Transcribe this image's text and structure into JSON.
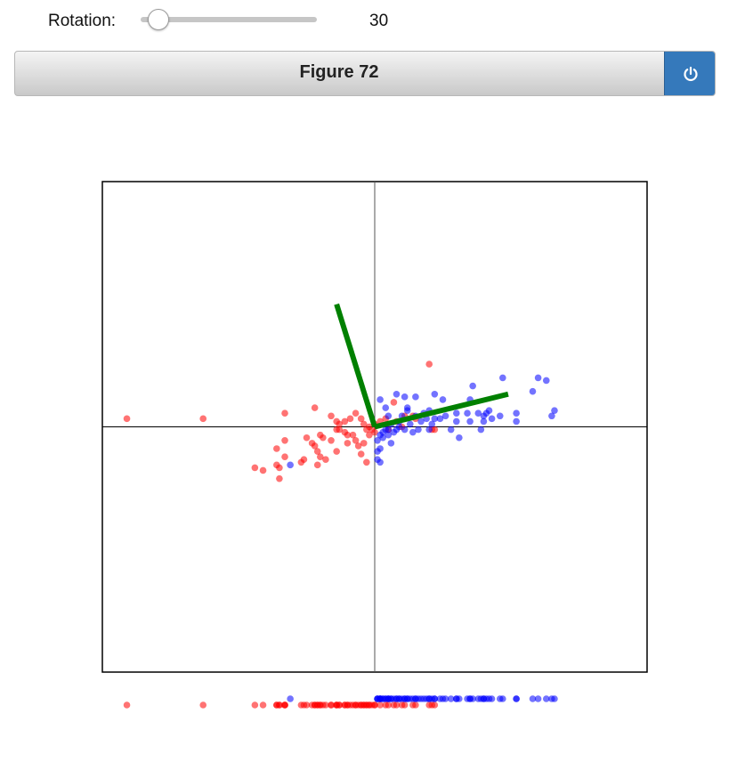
{
  "controls": {
    "rotation_label": "Rotation:",
    "rotation_value": "30",
    "rotation_fraction": 0.1
  },
  "figure": {
    "title": "Figure 72",
    "power_button_icon": "power-icon"
  },
  "colors": {
    "red_class": "#ff0000",
    "blue_class": "#0000ff",
    "vectors": "#008000",
    "power_button": "#3579bb",
    "axes": "#000000"
  },
  "chart_data": {
    "type": "scatter",
    "title": "",
    "xlabel": "",
    "ylabel": "",
    "xlim": [
      -100,
      100
    ],
    "ylim": [
      -90,
      90
    ],
    "grid": false,
    "zero_lines": true,
    "series": [
      {
        "color": "#ff0000",
        "points": [
          [
            -91,
            3
          ],
          [
            -63,
            3
          ],
          [
            -33,
            5
          ],
          [
            -22,
            7
          ],
          [
            -16,
            4
          ],
          [
            -14,
            2
          ],
          [
            -13,
            1
          ],
          [
            -11,
            2
          ],
          [
            -9,
            3
          ],
          [
            -7,
            5
          ],
          [
            -5,
            3
          ],
          [
            -4,
            1
          ],
          [
            -3,
            -1
          ],
          [
            -2,
            0
          ],
          [
            -1,
            -1
          ],
          [
            0,
            1
          ],
          [
            2,
            2
          ],
          [
            4,
            3
          ],
          [
            5,
            -1
          ],
          [
            7,
            9
          ],
          [
            8,
            2
          ],
          [
            10,
            0
          ],
          [
            11,
            4
          ],
          [
            14,
            4
          ],
          [
            15,
            3
          ],
          [
            20,
            23
          ],
          [
            21,
            -1
          ],
          [
            22,
            -1
          ],
          [
            -20,
            -3
          ],
          [
            -19,
            -4
          ],
          [
            -16,
            -5
          ],
          [
            -14,
            -1
          ],
          [
            -13,
            -1
          ],
          [
            -11,
            -2
          ],
          [
            -10,
            -3
          ],
          [
            -8,
            -3
          ],
          [
            -7,
            -5
          ],
          [
            -6,
            -7
          ],
          [
            -4,
            -6
          ],
          [
            -2,
            -3
          ],
          [
            0,
            -2
          ],
          [
            -23,
            -6
          ],
          [
            -25,
            -4
          ],
          [
            -22,
            -7
          ],
          [
            -21,
            -9
          ],
          [
            -20,
            -11
          ],
          [
            -26,
            -12
          ],
          [
            -27,
            -13
          ],
          [
            -33,
            -5
          ],
          [
            -36,
            -8
          ],
          [
            -33,
            -11
          ],
          [
            -36,
            -14
          ],
          [
            -35,
            -19
          ],
          [
            -44,
            -15
          ],
          [
            -41,
            -16
          ],
          [
            -35,
            -15
          ],
          [
            -21,
            -14
          ],
          [
            -18,
            -12
          ],
          [
            -14,
            -9
          ],
          [
            -10,
            -6
          ],
          [
            -5,
            -10
          ],
          [
            -3,
            -13
          ]
        ]
      },
      {
        "color": "#0000ff",
        "points": [
          [
            1,
            -9
          ],
          [
            1,
            -12
          ],
          [
            2,
            -13
          ],
          [
            2,
            -8
          ],
          [
            3,
            -4
          ],
          [
            3,
            -2
          ],
          [
            4,
            -1
          ],
          [
            5,
            -1
          ],
          [
            5,
            4
          ],
          [
            6,
            1
          ],
          [
            7,
            -2
          ],
          [
            8,
            -1
          ],
          [
            9,
            0
          ],
          [
            9,
            2
          ],
          [
            10,
            4
          ],
          [
            11,
            -1
          ],
          [
            12,
            6
          ],
          [
            13,
            1
          ],
          [
            14,
            -2
          ],
          [
            15,
            4
          ],
          [
            15,
            11
          ],
          [
            16,
            -1
          ],
          [
            17,
            2
          ],
          [
            18,
            5
          ],
          [
            19,
            3
          ],
          [
            20,
            -1
          ],
          [
            21,
            1
          ],
          [
            22,
            12
          ],
          [
            22,
            3
          ],
          [
            24,
            3
          ],
          [
            25,
            10
          ],
          [
            26,
            4
          ],
          [
            28,
            -1
          ],
          [
            30,
            5
          ],
          [
            30,
            2
          ],
          [
            34,
            5
          ],
          [
            35,
            2
          ],
          [
            36,
            15
          ],
          [
            35,
            10
          ],
          [
            38,
            5
          ],
          [
            39,
            -1
          ],
          [
            40,
            2
          ],
          [
            41,
            5
          ],
          [
            42,
            6
          ],
          [
            43,
            3
          ],
          [
            47,
            18
          ],
          [
            52,
            5
          ],
          [
            58,
            13
          ],
          [
            60,
            18
          ],
          [
            63,
            17
          ],
          [
            65,
            4
          ],
          [
            66,
            6
          ],
          [
            52,
            2
          ],
          [
            46,
            4
          ],
          [
            40,
            4
          ],
          [
            31,
            -4
          ],
          [
            20,
            6
          ],
          [
            12,
            7
          ],
          [
            4,
            7
          ],
          [
            2,
            10
          ],
          [
            8,
            12
          ],
          [
            11,
            11
          ],
          [
            -31,
            -14
          ],
          [
            1,
            -5
          ],
          [
            2,
            -3
          ],
          [
            6,
            -6
          ],
          [
            5,
            -3
          ]
        ]
      }
    ],
    "vectors": [
      {
        "color": "#008000",
        "from": [
          0,
          0
        ],
        "to": [
          49,
          12
        ]
      },
      {
        "color": "#008000",
        "from": [
          0,
          0
        ],
        "to": [
          -14,
          45
        ]
      }
    ],
    "projection_strip": true
  }
}
